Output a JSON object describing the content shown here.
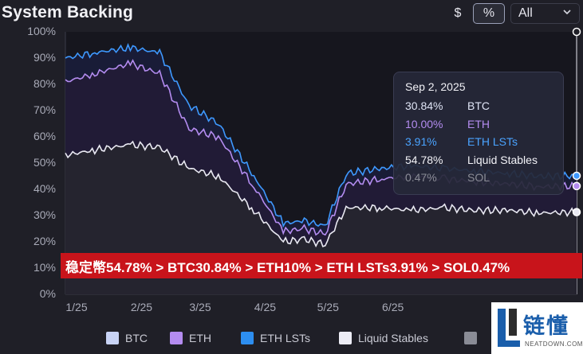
{
  "header": {
    "title": "System Backing",
    "dollar_label": "$",
    "percent_label": "%",
    "range_label": "All",
    "range_chevron": "chevron-down-icon"
  },
  "chart_data": {
    "type": "area",
    "stacked": true,
    "y_ticks": [
      "0%",
      "10%",
      "20%",
      "30%",
      "40%",
      "50%",
      "60%",
      "70%",
      "80%",
      "90%",
      "100%"
    ],
    "x_ticks": [
      "1/25",
      "2/25",
      "3/25",
      "4/25",
      "5/25",
      "6/25"
    ],
    "ylim": [
      0,
      100
    ],
    "x_axis": [
      "1/25",
      "9/2/25"
    ],
    "grid": false,
    "series": [
      {
        "name": "BTC",
        "color": "#c8d3f5"
      },
      {
        "name": "ETH",
        "color": "#b48cf0"
      },
      {
        "name": "ETH LSTs",
        "color": "#2d8ef0"
      },
      {
        "name": "Liquid Stables",
        "color": "#ececf5"
      },
      {
        "name": "SOL",
        "color": "#8a8c96"
      }
    ],
    "cumulative_top_lines": [
      {
        "name": "ETH LSTs",
        "color": "#3e99ff",
        "x": [
          "1/1/25",
          "1/15/25",
          "2/1/25",
          "2/15/25",
          "3/1/25",
          "3/15/25",
          "4/1/25",
          "4/15/25",
          "4/25/25",
          "5/5/25",
          "5/15/25",
          "6/1/25",
          "6/15/25",
          "7/1/25",
          "7/15/25",
          "8/1/25",
          "8/15/25",
          "9/2/25"
        ],
        "values": [
          90,
          92,
          94,
          92,
          72,
          65,
          45,
          27,
          28,
          26,
          46,
          48,
          49,
          48,
          47,
          46,
          45,
          45.16
        ]
      },
      {
        "name": "ETH",
        "color": "#b48cf0",
        "x": [
          "1/1/25",
          "1/15/25",
          "2/1/25",
          "2/15/25",
          "3/1/25",
          "3/15/25",
          "4/1/25",
          "4/15/25",
          "4/25/25",
          "5/5/25",
          "5/15/25",
          "6/1/25",
          "6/15/25",
          "7/1/25",
          "7/15/25",
          "8/1/25",
          "8/15/25",
          "9/2/25"
        ],
        "values": [
          81,
          84,
          88,
          84,
          63,
          60,
          41,
          24,
          25,
          23,
          42,
          44,
          45,
          44,
          43,
          42,
          41,
          41.25
        ]
      },
      {
        "name": "Liquid Stables",
        "color": "#e9e9f2",
        "x": [
          "1/1/25",
          "1/15/25",
          "2/1/25",
          "2/15/25",
          "3/1/25",
          "3/15/25",
          "4/1/25",
          "4/15/25",
          "4/25/25",
          "5/5/25",
          "5/15/25",
          "6/1/25",
          "6/15/25",
          "7/1/25",
          "7/15/25",
          "8/1/25",
          "8/15/25",
          "9/2/25"
        ],
        "values": [
          53,
          55,
          57,
          56,
          48,
          45,
          32,
          20,
          21,
          19,
          33,
          33,
          32,
          33,
          32,
          32,
          31,
          31.31
        ]
      }
    ],
    "tooltip": {
      "date": "Sep 2, 2025",
      "rows": [
        {
          "value": "30.84%",
          "label": "BTC",
          "color": "#dfe4f5"
        },
        {
          "value": "10.00%",
          "label": "ETH",
          "color": "#b48cf0"
        },
        {
          "value": "3.91%",
          "label": "ETH LSTs",
          "color": "#4aa3ff"
        },
        {
          "value": "54.78%",
          "label": "Liquid Stables",
          "color": "#f2f2f7"
        },
        {
          "value": "0.47%",
          "label": "SOL",
          "color": "#8a8c96"
        }
      ]
    }
  },
  "banner": {
    "text": "稳定幣54.78% > BTC30.84% > ETH10% > ETH LSTs3.91% > SOL0.47%"
  },
  "logo": {
    "text": "链懂",
    "sub": "NEATDOWN.COM",
    "color": "#1a5eab"
  }
}
